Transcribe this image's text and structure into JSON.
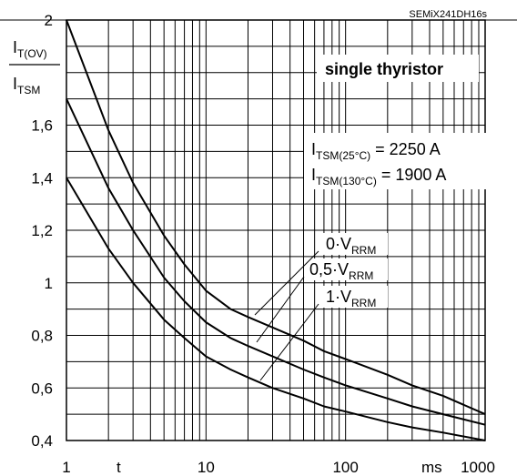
{
  "chart_data": {
    "type": "line",
    "doc_id": "SEMiX241DH16s",
    "title": "single thyristor",
    "x_scale": "log",
    "xlim": [
      1,
      1000
    ],
    "ylim": [
      0.4,
      2
    ],
    "y_ticks": [
      "2",
      "1,6",
      "1,4",
      "1,2",
      "1",
      "0,8",
      "0,6",
      "0,4"
    ],
    "y_tick_values": [
      2,
      1.6,
      1.4,
      1.2,
      1,
      0.8,
      0.6,
      0.4
    ],
    "x_ticks": [
      "1",
      "10",
      "100",
      "1000"
    ],
    "x_tick_values": [
      1,
      10,
      100,
      1000
    ],
    "x_var": "t",
    "x_unit": "ms",
    "y_label": {
      "main": "I",
      "sub": "T(OV)"
    },
    "y_label_denominator": {
      "main": "I",
      "sub": "TSM"
    },
    "annotations": [
      {
        "main": "I",
        "sub": "TSM(25°C)",
        "value": " = 2250 A"
      },
      {
        "main": "I",
        "sub": "TSM(130°C)",
        "value": " = 1900 A"
      }
    ],
    "series": [
      {
        "name": "0·V_RRM",
        "label_main": "0·V",
        "label_sub": "RRM",
        "x": [
          1,
          2,
          3,
          5,
          7,
          10,
          15,
          20,
          30,
          50,
          70,
          100,
          200,
          300,
          500,
          1000
        ],
        "y": [
          2.0,
          1.58,
          1.38,
          1.18,
          1.07,
          0.97,
          0.9,
          0.87,
          0.83,
          0.78,
          0.74,
          0.71,
          0.65,
          0.61,
          0.57,
          0.5
        ]
      },
      {
        "name": "0,5·V_RRM",
        "label_main": "0,5·V",
        "label_sub": "RRM",
        "x": [
          1,
          2,
          3,
          5,
          7,
          10,
          15,
          20,
          30,
          50,
          70,
          100,
          200,
          300,
          500,
          1000
        ],
        "y": [
          1.7,
          1.36,
          1.2,
          1.02,
          0.93,
          0.85,
          0.79,
          0.76,
          0.72,
          0.67,
          0.64,
          0.61,
          0.56,
          0.53,
          0.5,
          0.46
        ]
      },
      {
        "name": "1·V_RRM",
        "label_main": "1·V",
        "label_sub": "RRM",
        "x": [
          1,
          2,
          3,
          5,
          7,
          10,
          15,
          20,
          30,
          50,
          70,
          100,
          200,
          300,
          500,
          1000
        ],
        "y": [
          1.4,
          1.13,
          1.0,
          0.86,
          0.79,
          0.72,
          0.67,
          0.64,
          0.6,
          0.56,
          0.53,
          0.51,
          0.47,
          0.45,
          0.43,
          0.4
        ]
      }
    ]
  }
}
